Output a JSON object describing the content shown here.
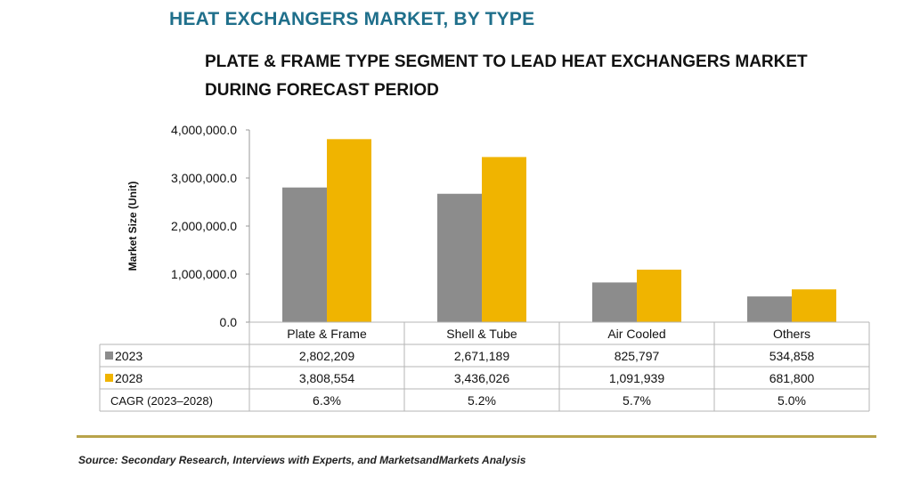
{
  "header": {
    "title": "HEAT EXCHANGERS MARKET, BY TYPE",
    "subtitle": "PLATE & FRAME TYPE SEGMENT TO LEAD HEAT EXCHANGERS MARKET DURING FORECAST PERIOD"
  },
  "chart_data": {
    "type": "bar",
    "categories": [
      "Plate & Frame",
      "Shell & Tube",
      "Air Cooled",
      "Others"
    ],
    "series": [
      {
        "name": "2023",
        "values": [
          2802209,
          2671189,
          825797,
          534858
        ],
        "color": "#8c8c8c",
        "labels": [
          "2,802,209",
          "2,671,189",
          "825,797",
          "534,858"
        ]
      },
      {
        "name": "2028",
        "values": [
          3808554,
          3436026,
          1091939,
          681800
        ],
        "color": "#f0b400",
        "labels": [
          "3,808,554",
          "3,436,026",
          "1,091,939",
          "681,800"
        ]
      }
    ],
    "ylabel": "Market Size (Unit)",
    "ylim": [
      0,
      4000000
    ],
    "yticks": [
      0,
      1000000,
      2000000,
      3000000,
      4000000
    ],
    "ytick_labels": [
      "0.0",
      "1,000,000.0",
      "2,000,000.0",
      "3,000,000.0",
      "4,000,000.0"
    ],
    "grid": false,
    "table": {
      "cagr_label": "CAGR (2023–2028)",
      "cagr": [
        "6.3%",
        "5.2%",
        "5.7%",
        "5.0%"
      ]
    }
  },
  "footer": {
    "source": "Source: Secondary Research, Interviews with Experts, and MarketsandMarkets Analysis"
  }
}
